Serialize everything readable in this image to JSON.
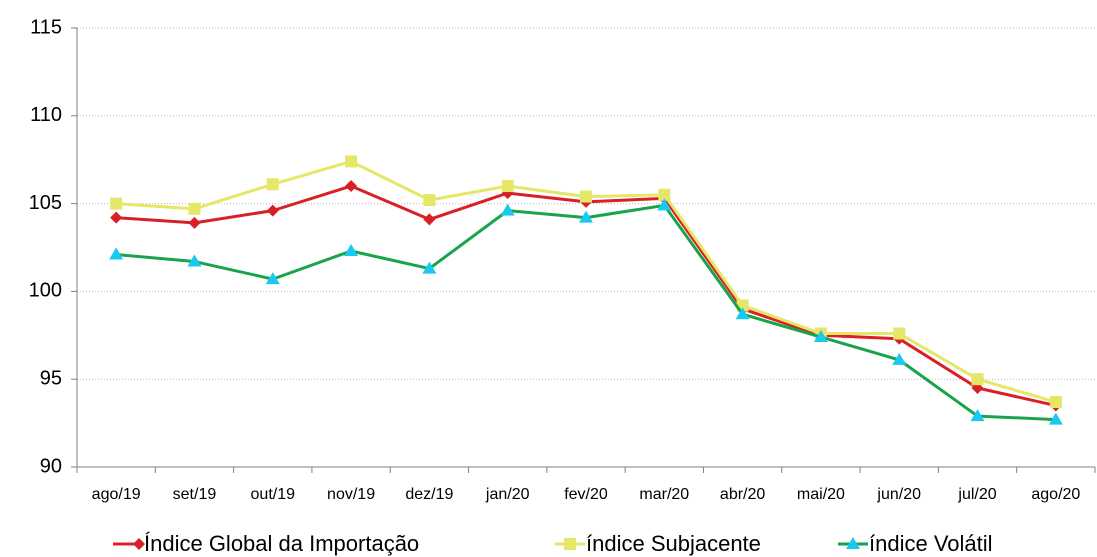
{
  "chart_data": {
    "type": "line",
    "categories": [
      "ago/19",
      "set/19",
      "out/19",
      "nov/19",
      "dez/19",
      "jan/20",
      "fev/20",
      "mar/20",
      "abr/20",
      "mai/20",
      "jun/20",
      "jul/20",
      "ago/20"
    ],
    "series": [
      {
        "name": "Índice Global da Importação",
        "color": "#d92027",
        "marker": "diamond",
        "marker_color": "#d92027",
        "values": [
          104.2,
          103.9,
          104.6,
          106.0,
          104.1,
          105.6,
          105.1,
          105.3,
          99.0,
          97.5,
          97.3,
          94.5,
          93.5
        ]
      },
      {
        "name": "índice Subjacente",
        "color": "#e6e667",
        "marker": "square",
        "marker_color": "#e6e667",
        "values": [
          105.0,
          104.7,
          106.1,
          107.4,
          105.2,
          106.0,
          105.4,
          105.5,
          99.2,
          97.6,
          97.6,
          95.0,
          93.7
        ]
      },
      {
        "name": "índice Volátil",
        "color": "#1aa34a",
        "marker": "triangle",
        "marker_color": "#19c9f0",
        "values": [
          102.1,
          101.7,
          100.7,
          102.3,
          101.3,
          104.6,
          104.2,
          104.9,
          98.7,
          97.4,
          96.1,
          92.9,
          92.7
        ]
      }
    ],
    "ylim": [
      90,
      115
    ],
    "yticks": [
      90,
      95,
      100,
      105,
      110,
      115
    ],
    "grid": true,
    "legend": "bottom"
  }
}
